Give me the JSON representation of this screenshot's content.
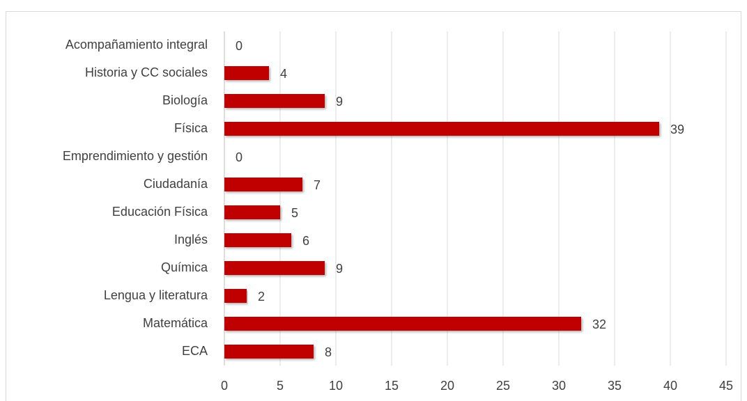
{
  "chart_data": {
    "type": "bar",
    "orientation": "horizontal",
    "categories": [
      "Acompañamiento integral",
      "Historia y CC sociales",
      "Biología",
      "Física",
      "Emprendimiento y gestión",
      "Ciudadanía",
      "Educación Física",
      "Inglés",
      "Química",
      "Lengua y literatura",
      "Matemática",
      "ECA"
    ],
    "values": [
      0,
      4,
      9,
      39,
      0,
      7,
      5,
      6,
      9,
      2,
      32,
      8
    ],
    "color": "#c00000",
    "xlim": [
      0,
      45
    ],
    "xticks": [
      0,
      5,
      10,
      15,
      20,
      25,
      30,
      35,
      40,
      45
    ],
    "grid": true
  }
}
